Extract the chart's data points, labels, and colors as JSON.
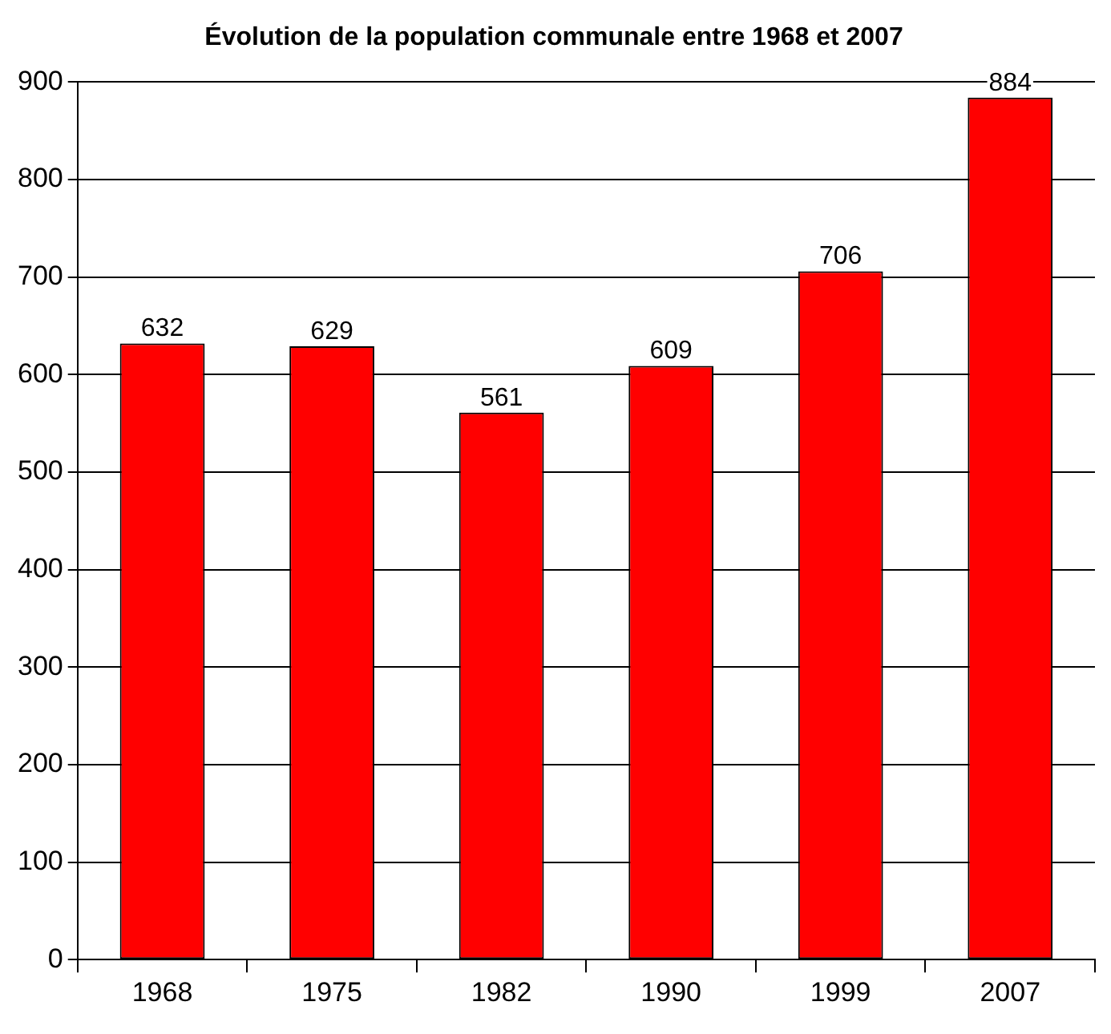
{
  "chart_data": {
    "type": "bar",
    "title": "Évolution de la population communale entre 1968 et 2007",
    "categories": [
      "1968",
      "1975",
      "1982",
      "1990",
      "1999",
      "2007"
    ],
    "values": [
      632,
      629,
      561,
      609,
      706,
      884
    ],
    "color": "#ff0000",
    "ylim": [
      0,
      900
    ],
    "yticks": [
      0,
      100,
      200,
      300,
      400,
      500,
      600,
      700,
      800,
      900
    ],
    "grid": "y",
    "data_labels": true
  }
}
